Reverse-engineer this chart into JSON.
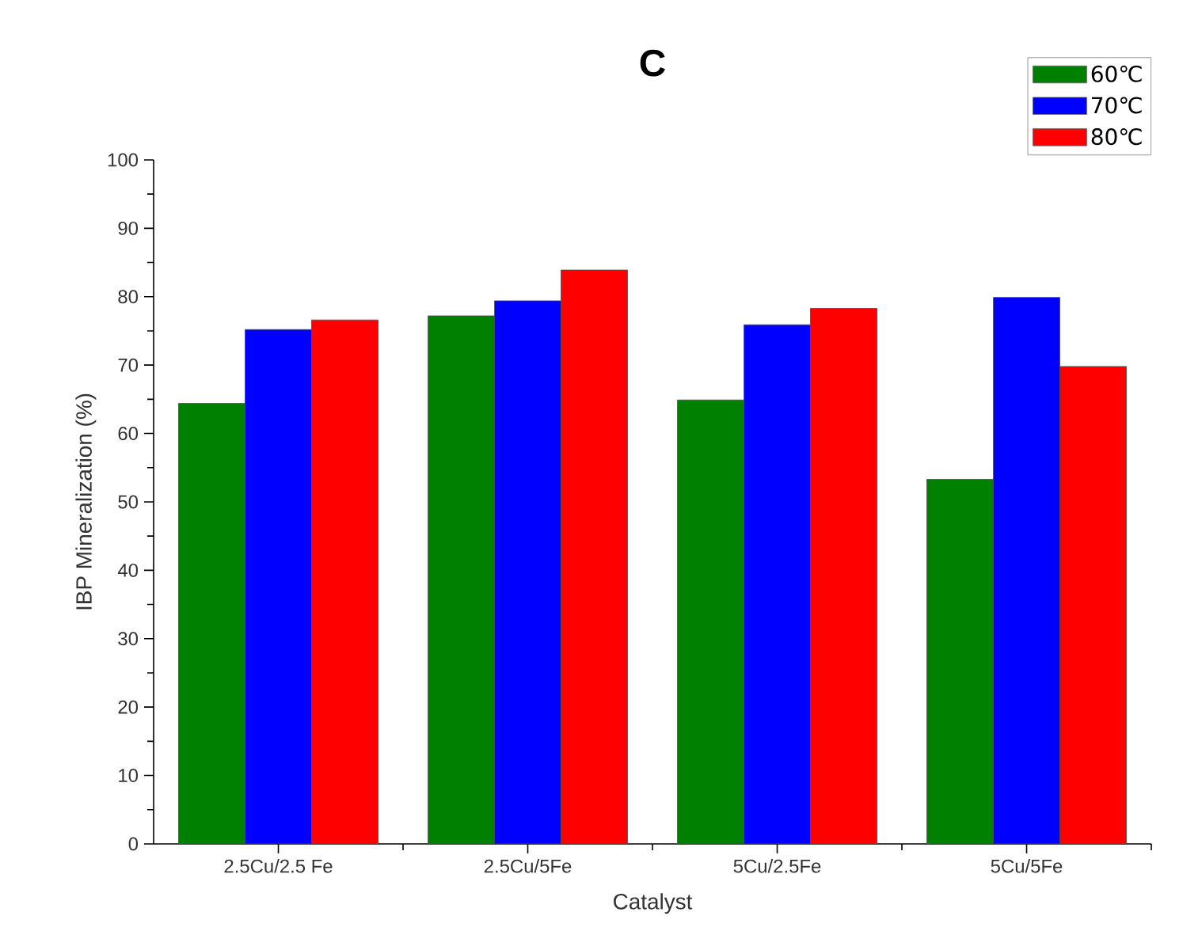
{
  "chart_data": {
    "type": "bar",
    "title": "C",
    "xlabel": "Catalyst",
    "ylabel": "IBP Mineralization (%)",
    "categories": [
      "2.5Cu/2.5 Fe",
      "2.5Cu/5Fe",
      "5Cu/2.5Fe",
      "5Cu/5Fe"
    ],
    "series": [
      {
        "name": "60℃",
        "color": "#008000",
        "values": [
          64.4,
          77.2,
          64.9,
          53.3
        ]
      },
      {
        "name": "70℃",
        "color": "#0000ff",
        "values": [
          75.2,
          79.4,
          75.9,
          79.9
        ]
      },
      {
        "name": "80℃",
        "color": "#ff0000",
        "values": [
          76.6,
          83.9,
          78.3,
          69.8
        ]
      }
    ],
    "ylim": [
      0,
      100
    ],
    "yticks": [
      0,
      10,
      20,
      30,
      40,
      50,
      60,
      70,
      80,
      90,
      100
    ],
    "legend": "top right",
    "grid": false
  }
}
